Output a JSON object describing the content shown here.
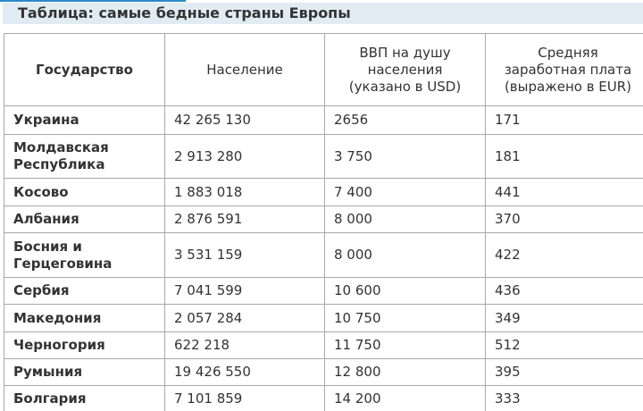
{
  "title": "Таблица: самые бедные страны Европы",
  "table": {
    "headers": [
      "Государство",
      "Население",
      "ВВП на душу населения (указано в USD)",
      "Средняя заработная плата (выражено в EUR)"
    ],
    "rows": [
      [
        "Украина",
        "42 265 130",
        "2656",
        "171"
      ],
      [
        "Молдавская Республика",
        "2 913 280",
        "3 750",
        "181"
      ],
      [
        "Косово",
        "1 883 018",
        "7 400",
        "441"
      ],
      [
        "Албания",
        "2 876 591",
        "8 000",
        "370"
      ],
      [
        "Босния и Герцеговина",
        "3 531 159",
        "8 000",
        "422"
      ],
      [
        "Сербия",
        "7 041 599",
        "10 600",
        "436"
      ],
      [
        "Македония",
        "2 057 284",
        "10 750",
        "349"
      ],
      [
        "Черногория",
        "622 218",
        "11 750",
        "512"
      ],
      [
        "Румыния",
        "19 426 550",
        "12 800",
        "395"
      ],
      [
        "Болгария",
        "7 101 859",
        "14 200",
        "333"
      ]
    ]
  }
}
